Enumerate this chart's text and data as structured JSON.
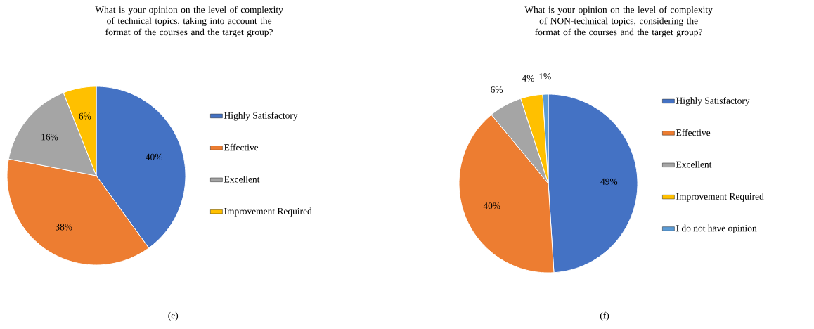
{
  "chart_data": [
    {
      "type": "pie",
      "title": "What is your opinion on the level of complexity of technical topics, taking into account the format of the courses and the target group?",
      "categories": [
        "Highly Satisfactory",
        "Effective",
        "Excellent",
        "Improvement Required"
      ],
      "values": [
        40,
        38,
        16,
        6
      ],
      "value_labels": [
        "40%",
        "38%",
        "16%",
        "6%"
      ],
      "colors": [
        "#4472c4",
        "#ed7d31",
        "#a5a5a5",
        "#ffc000"
      ],
      "legend": "right",
      "annotations": [
        "(e)"
      ]
    },
    {
      "type": "pie",
      "title": "What is your opinion on the level of complexity of NON-technical topics, considering the format of the courses and the target group?",
      "categories": [
        "Highly Satisfactory",
        "Effective",
        "Excellent",
        "Improvement Required",
        "I do not have opinion"
      ],
      "values": [
        49,
        40,
        6,
        4,
        1
      ],
      "value_labels": [
        "49%",
        "40%",
        "6%",
        "4%",
        "1%"
      ],
      "colors": [
        "#4472c4",
        "#ed7d31",
        "#a5a5a5",
        "#ffc000",
        "#5b9bd5"
      ],
      "legend": "right",
      "annotations": [
        "(f)"
      ]
    }
  ]
}
